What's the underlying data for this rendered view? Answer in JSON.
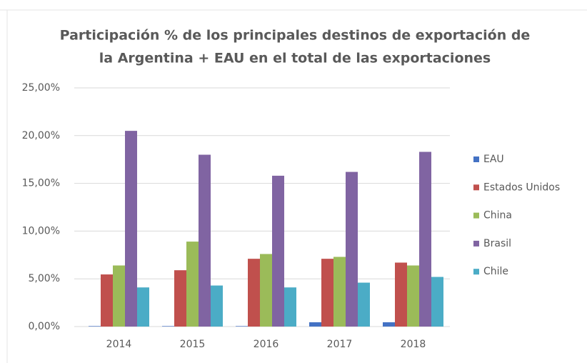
{
  "chart_data": {
    "type": "bar",
    "title": [
      "Participación % de los principales destinos de exportación de",
      "la Argentina + EAU en el total de las exportaciones"
    ],
    "categories": [
      "2014",
      "2015",
      "2016",
      "2017",
      "2018"
    ],
    "series": [
      {
        "name": "EAU",
        "color": "#4472c4",
        "values": [
          0.05,
          0.05,
          0.05,
          0.45,
          0.45
        ]
      },
      {
        "name": "Estados Unidos",
        "color": "#c0504d",
        "values": [
          5.46,
          5.9,
          7.1,
          7.1,
          6.7
        ]
      },
      {
        "name": "China",
        "color": "#9bbb59",
        "values": [
          6.4,
          8.9,
          7.6,
          7.3,
          6.4
        ]
      },
      {
        "name": "Brasil",
        "color": "#8064a2",
        "values": [
          20.5,
          18.0,
          15.8,
          16.2,
          18.3
        ]
      },
      {
        "name": "Chile",
        "color": "#4bacc6",
        "values": [
          4.1,
          4.3,
          4.1,
          4.6,
          5.2
        ]
      }
    ],
    "ylim": [
      0,
      25
    ],
    "yticks": [
      {
        "value": 0,
        "label": "0,00%"
      },
      {
        "value": 5,
        "label": "5,00%"
      },
      {
        "value": 10,
        "label": "10,00%"
      },
      {
        "value": 15,
        "label": "15,00%"
      },
      {
        "value": 20,
        "label": "20,00%"
      },
      {
        "value": 25,
        "label": "25,00%"
      }
    ],
    "grid": true,
    "legend": "right"
  }
}
